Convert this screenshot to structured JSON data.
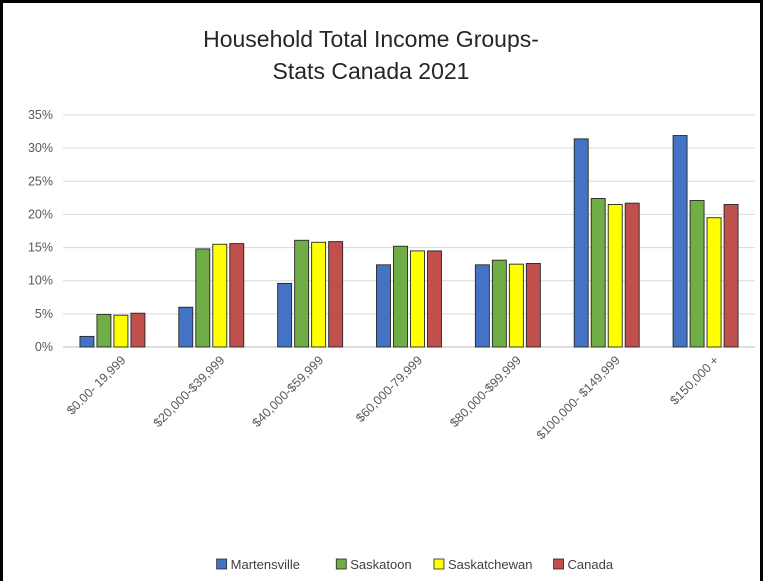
{
  "chart_data": {
    "type": "bar",
    "title_line1": "Household Total Income Groups-",
    "title_line2": "Stats Canada 2021",
    "xlabel": "",
    "ylabel": "",
    "ylim": [
      0,
      35
    ],
    "y_ticks": [
      "0%",
      "5%",
      "10%",
      "15%",
      "20%",
      "25%",
      "30%",
      "35%"
    ],
    "y_tick_values": [
      0,
      5,
      10,
      15,
      20,
      25,
      30,
      35
    ],
    "grid": true,
    "legend_position": "bottom",
    "categories": [
      "$0.00- 19,999",
      "$20,000-$39,999",
      "$40,000-$59,999",
      "$60,000-79,999",
      "$80,000-$99,999",
      "$100,000- $149,999",
      "$150,000 +"
    ],
    "series": [
      {
        "name": "Martensville",
        "color": "#4472C4",
        "values": [
          1.6,
          6.0,
          9.6,
          12.4,
          12.4,
          31.4,
          31.9
        ]
      },
      {
        "name": "Saskatoon",
        "color": "#70AD47",
        "values": [
          4.9,
          14.8,
          16.1,
          15.2,
          13.1,
          22.4,
          22.1
        ]
      },
      {
        "name": "Saskatchewan",
        "color": "#FFFF00",
        "values": [
          4.8,
          15.5,
          15.8,
          14.5,
          12.5,
          21.5,
          19.5
        ]
      },
      {
        "name": "Canada",
        "color": "#C0504D",
        "values": [
          5.1,
          15.6,
          15.9,
          14.5,
          12.6,
          21.7,
          21.5
        ]
      }
    ]
  }
}
